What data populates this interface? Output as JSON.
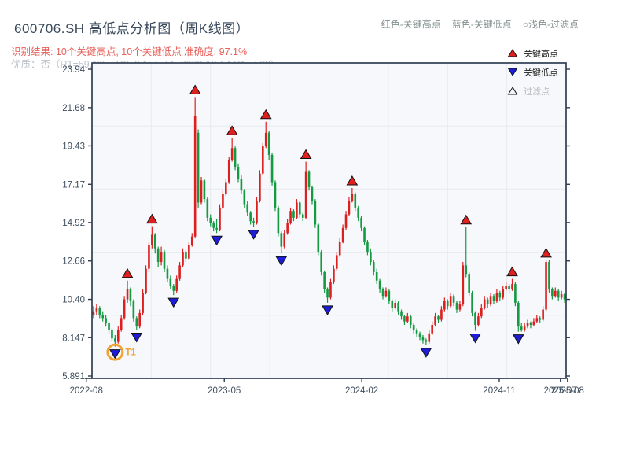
{
  "header": {
    "title": "600706.SH 高低点分析图（周K线图）",
    "color_key": {
      "high": "红色-关键高点",
      "low": "蓝色-关键低点",
      "filter": "○浅色-过滤点"
    },
    "result_line": "识别结果: 10个关键高点, 10个关键低点  准确度: 97.1%",
    "quality_line": "优质：否（R1=59.1%，R2=0.15；T1=2022-10-14 P1=7.62)"
  },
  "chart_data": {
    "type": "candlestick",
    "title": "600706.SH 高低点分析图（周K线图）",
    "y_tick_labels": [
      "23.94",
      "21.68",
      "19.43",
      "17.17",
      "14.92",
      "12.66",
      "10.40",
      "8.147",
      "5.891"
    ],
    "ylim": [
      5.891,
      23.94
    ],
    "x_tick_labels": [
      "2022-08",
      "2023-05",
      "2024-02",
      "2024-11",
      "2025-07",
      "2025-08"
    ],
    "grid": true,
    "legend_position": "top-right",
    "legend_items": [
      {
        "label": "关键高点",
        "marker": "triangle-up",
        "color": "#e01f1f",
        "text_color": "#1a1a1a"
      },
      {
        "label": "关键低点",
        "marker": "triangle-down",
        "color": "#1d1dd8",
        "text_color": "#1a1a1a"
      },
      {
        "label": "过滤点",
        "marker": "triangle-up-open",
        "color": "#f2f4f6",
        "text_color": "#b3bac0"
      }
    ],
    "colors": {
      "up": "#dc2020",
      "down": "#159a43",
      "key_high_marker": "#e01f1f",
      "key_low_marker": "#1d1dd8",
      "marker_edge": "#111111",
      "t1_ring": "#f2a134",
      "spine": "#2f3e52",
      "grid": "#e7eaee",
      "plot_bg": "#f7f8fb",
      "tick_label": "#3f4e5e"
    },
    "t1_annotation": {
      "week": 7,
      "price": 7.62,
      "label": "T1"
    },
    "key_highs": [
      {
        "week": 11,
        "price": 11.5
      },
      {
        "week": 19,
        "price": 14.7
      },
      {
        "week": 33,
        "price": 22.3
      },
      {
        "week": 45,
        "price": 19.9
      },
      {
        "week": 56,
        "price": 20.85
      },
      {
        "week": 69,
        "price": 18.5
      },
      {
        "week": 84,
        "price": 16.95
      },
      {
        "week": 121,
        "price": 14.65
      },
      {
        "week": 136,
        "price": 11.6
      },
      {
        "week": 147,
        "price": 12.7
      }
    ],
    "key_lows": [
      {
        "week": 7,
        "price": 7.62
      },
      {
        "week": 14,
        "price": 8.6
      },
      {
        "week": 26,
        "price": 10.65
      },
      {
        "week": 40,
        "price": 14.3
      },
      {
        "week": 52,
        "price": 14.65
      },
      {
        "week": 61,
        "price": 13.1
      },
      {
        "week": 76,
        "price": 10.2
      },
      {
        "week": 108,
        "price": 7.7
      },
      {
        "week": 124,
        "price": 8.55
      },
      {
        "week": 138,
        "price": 8.5
      }
    ],
    "candles_ohlc": [
      [
        9.5,
        10.0,
        9.3,
        9.7
      ],
      [
        9.7,
        10.1,
        9.5,
        9.9
      ],
      [
        9.9,
        10.0,
        9.3,
        9.5
      ],
      [
        9.5,
        9.7,
        9.1,
        9.3
      ],
      [
        9.3,
        9.5,
        8.8,
        9.0
      ],
      [
        9.0,
        9.1,
        8.4,
        8.6
      ],
      [
        8.6,
        8.7,
        7.9,
        8.1
      ],
      [
        8.1,
        8.3,
        7.62,
        7.9
      ],
      [
        7.9,
        8.8,
        7.8,
        8.6
      ],
      [
        8.6,
        9.5,
        8.5,
        9.3
      ],
      [
        9.3,
        10.6,
        9.2,
        10.4
      ],
      [
        10.4,
        11.5,
        10.2,
        11.0
      ],
      [
        11.0,
        11.1,
        10.0,
        10.3
      ],
      [
        10.3,
        10.4,
        9.1,
        9.3
      ],
      [
        9.3,
        9.4,
        8.6,
        8.8
      ],
      [
        8.8,
        9.8,
        8.7,
        9.6
      ],
      [
        9.6,
        11.0,
        9.5,
        10.8
      ],
      [
        10.8,
        12.4,
        10.7,
        12.2
      ],
      [
        12.2,
        13.8,
        12.0,
        13.6
      ],
      [
        13.6,
        14.7,
        13.4,
        14.2
      ],
      [
        14.2,
        14.3,
        13.1,
        13.4
      ],
      [
        13.4,
        13.5,
        12.3,
        12.6
      ],
      [
        12.6,
        13.5,
        12.4,
        13.2
      ],
      [
        13.2,
        13.3,
        12.0,
        12.2
      ],
      [
        12.2,
        12.4,
        11.4,
        11.6
      ],
      [
        11.6,
        11.8,
        11.0,
        11.2
      ],
      [
        11.2,
        11.3,
        10.65,
        10.9
      ],
      [
        10.9,
        11.8,
        10.8,
        11.6
      ],
      [
        11.6,
        12.6,
        11.5,
        12.4
      ],
      [
        12.4,
        13.4,
        12.3,
        13.2
      ],
      [
        13.2,
        13.3,
        12.6,
        12.8
      ],
      [
        12.8,
        13.8,
        12.7,
        13.6
      ],
      [
        13.6,
        14.3,
        13.5,
        14.1
      ],
      [
        14.1,
        22.3,
        14.0,
        21.2
      ],
      [
        20.2,
        20.4,
        15.8,
        16.1
      ],
      [
        16.1,
        17.6,
        16.0,
        17.4
      ],
      [
        17.4,
        17.5,
        16.1,
        16.3
      ],
      [
        16.3,
        16.4,
        15.0,
        15.2
      ],
      [
        15.2,
        15.4,
        14.7,
        14.9
      ],
      [
        14.9,
        15.0,
        14.4,
        14.6
      ],
      [
        14.6,
        15.1,
        14.3,
        14.5
      ],
      [
        14.5,
        16.0,
        14.4,
        15.8
      ],
      [
        15.8,
        16.8,
        15.7,
        16.6
      ],
      [
        16.6,
        17.5,
        16.5,
        17.3
      ],
      [
        17.3,
        18.8,
        17.2,
        18.6
      ],
      [
        18.6,
        19.9,
        18.5,
        19.3
      ],
      [
        19.3,
        19.4,
        18.0,
        18.2
      ],
      [
        18.2,
        18.4,
        17.3,
        17.5
      ],
      [
        17.5,
        17.7,
        16.6,
        16.8
      ],
      [
        16.8,
        16.9,
        15.8,
        16.0
      ],
      [
        16.0,
        16.2,
        15.3,
        15.5
      ],
      [
        15.5,
        15.6,
        14.8,
        15.0
      ],
      [
        15.0,
        15.2,
        14.65,
        14.9
      ],
      [
        14.9,
        16.4,
        14.8,
        16.2
      ],
      [
        16.2,
        18.0,
        16.1,
        17.8
      ],
      [
        17.8,
        19.6,
        17.7,
        19.4
      ],
      [
        19.4,
        20.85,
        19.3,
        20.2
      ],
      [
        20.2,
        20.3,
        18.6,
        18.9
      ],
      [
        18.9,
        19.0,
        17.1,
        17.3
      ],
      [
        17.3,
        17.4,
        15.6,
        15.8
      ],
      [
        15.8,
        15.9,
        14.1,
        14.3
      ],
      [
        14.3,
        14.4,
        13.1,
        13.5
      ],
      [
        13.5,
        14.5,
        13.4,
        14.3
      ],
      [
        14.3,
        15.1,
        14.2,
        14.9
      ],
      [
        14.9,
        15.8,
        14.8,
        15.6
      ],
      [
        15.6,
        15.7,
        15.0,
        15.2
      ],
      [
        15.2,
        16.3,
        15.1,
        16.1
      ],
      [
        16.1,
        16.2,
        15.2,
        15.4
      ],
      [
        15.4,
        15.5,
        15.0,
        15.2
      ],
      [
        15.2,
        18.5,
        15.1,
        17.9
      ],
      [
        17.9,
        18.0,
        16.8,
        17.0
      ],
      [
        17.0,
        17.1,
        16.0,
        16.2
      ],
      [
        16.2,
        16.3,
        14.6,
        14.8
      ],
      [
        14.8,
        14.9,
        13.0,
        13.2
      ],
      [
        13.2,
        13.3,
        11.8,
        12.0
      ],
      [
        12.0,
        12.1,
        10.8,
        11.0
      ],
      [
        11.0,
        11.1,
        10.2,
        10.5
      ],
      [
        10.5,
        11.6,
        10.4,
        11.4
      ],
      [
        11.4,
        12.4,
        11.3,
        12.2
      ],
      [
        12.2,
        13.2,
        12.1,
        13.0
      ],
      [
        13.0,
        14.0,
        12.9,
        13.8
      ],
      [
        13.8,
        14.8,
        13.7,
        14.6
      ],
      [
        14.6,
        15.6,
        14.5,
        15.4
      ],
      [
        15.4,
        16.4,
        15.3,
        16.2
      ],
      [
        16.2,
        16.95,
        16.1,
        16.6
      ],
      [
        16.6,
        16.7,
        15.6,
        15.8
      ],
      [
        15.8,
        15.9,
        15.0,
        15.2
      ],
      [
        15.2,
        15.3,
        14.4,
        14.6
      ],
      [
        14.6,
        14.7,
        13.6,
        13.8
      ],
      [
        13.8,
        13.9,
        13.0,
        13.2
      ],
      [
        13.2,
        13.4,
        12.4,
        12.6
      ],
      [
        12.6,
        12.7,
        11.8,
        12.0
      ],
      [
        12.0,
        12.2,
        11.3,
        11.5
      ],
      [
        11.5,
        11.6,
        10.8,
        11.0
      ],
      [
        11.0,
        11.1,
        10.4,
        10.6
      ],
      [
        10.6,
        11.1,
        10.5,
        10.9
      ],
      [
        10.9,
        11.0,
        10.1,
        10.3
      ],
      [
        10.3,
        10.4,
        9.7,
        9.9
      ],
      [
        9.9,
        10.4,
        9.8,
        10.2
      ],
      [
        10.2,
        10.3,
        9.5,
        9.7
      ],
      [
        9.7,
        9.8,
        9.2,
        9.4
      ],
      [
        9.4,
        9.5,
        8.9,
        9.1
      ],
      [
        9.1,
        9.6,
        9.0,
        9.4
      ],
      [
        9.4,
        9.5,
        8.7,
        8.9
      ],
      [
        8.9,
        9.0,
        8.4,
        8.6
      ],
      [
        8.6,
        8.7,
        8.2,
        8.4
      ],
      [
        8.4,
        8.5,
        8.0,
        8.2
      ],
      [
        8.2,
        8.3,
        7.8,
        8.0
      ],
      [
        8.0,
        8.1,
        7.7,
        7.9
      ],
      [
        7.9,
        8.6,
        7.8,
        8.4
      ],
      [
        8.4,
        9.1,
        8.3,
        8.9
      ],
      [
        8.9,
        9.6,
        8.8,
        9.4
      ],
      [
        9.4,
        9.5,
        9.0,
        9.2
      ],
      [
        9.2,
        10.0,
        9.1,
        9.8
      ],
      [
        9.8,
        10.5,
        9.7,
        10.3
      ],
      [
        10.3,
        10.4,
        9.8,
        10.0
      ],
      [
        10.0,
        10.8,
        9.9,
        10.6
      ],
      [
        10.6,
        10.7,
        10.0,
        10.2
      ],
      [
        10.2,
        10.3,
        9.6,
        9.8
      ],
      [
        9.8,
        10.3,
        9.7,
        10.1
      ],
      [
        10.1,
        12.6,
        10.0,
        12.4
      ],
      [
        12.4,
        14.65,
        11.7,
        11.9
      ],
      [
        11.9,
        12.0,
        10.6,
        10.8
      ],
      [
        10.8,
        10.9,
        9.4,
        9.6
      ],
      [
        9.6,
        9.7,
        8.55,
        8.9
      ],
      [
        8.9,
        9.6,
        8.8,
        9.4
      ],
      [
        9.4,
        10.1,
        9.3,
        9.9
      ],
      [
        9.9,
        10.6,
        9.8,
        10.4
      ],
      [
        10.4,
        10.5,
        9.9,
        10.1
      ],
      [
        10.1,
        10.8,
        10.0,
        10.6
      ],
      [
        10.6,
        10.7,
        10.1,
        10.3
      ],
      [
        10.3,
        11.0,
        10.2,
        10.8
      ],
      [
        10.8,
        10.9,
        10.3,
        10.5
      ],
      [
        10.5,
        11.2,
        10.4,
        11.0
      ],
      [
        11.0,
        11.4,
        10.9,
        11.2
      ],
      [
        11.2,
        11.3,
        10.8,
        11.0
      ],
      [
        11.0,
        11.6,
        10.9,
        11.3
      ],
      [
        11.3,
        11.4,
        10.0,
        10.2
      ],
      [
        10.2,
        10.3,
        8.5,
        8.8
      ],
      [
        8.8,
        9.0,
        8.5,
        8.6
      ],
      [
        8.6,
        9.0,
        8.5,
        8.8
      ],
      [
        8.8,
        9.2,
        8.7,
        9.0
      ],
      [
        9.0,
        9.1,
        8.7,
        8.9
      ],
      [
        8.9,
        9.3,
        8.8,
        9.1
      ],
      [
        9.1,
        9.5,
        9.0,
        9.3
      ],
      [
        9.3,
        9.4,
        9.0,
        9.2
      ],
      [
        9.2,
        10.0,
        9.1,
        9.8
      ],
      [
        9.8,
        12.7,
        9.7,
        12.6
      ],
      [
        12.6,
        12.7,
        10.8,
        11.0
      ],
      [
        11.0,
        11.1,
        10.4,
        10.6
      ],
      [
        10.6,
        11.1,
        10.5,
        10.9
      ],
      [
        10.9,
        11.0,
        10.3,
        10.5
      ],
      [
        10.5,
        10.9,
        10.4,
        10.7
      ],
      [
        10.7,
        10.8,
        10.2,
        10.4
      ]
    ]
  }
}
